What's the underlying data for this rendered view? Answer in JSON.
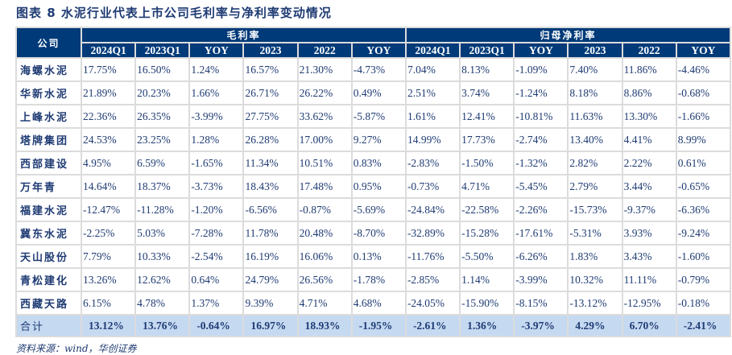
{
  "title": "图表 8  水泥行业代表上市公司毛利率与净利率变动情况",
  "header": {
    "company": "公司",
    "group1": "毛利率",
    "group2": "归母净利率",
    "columns": [
      "2024Q1",
      "2023Q1",
      "YOY",
      "2023",
      "2022",
      "YOY",
      "2024Q1",
      "2023Q1",
      "YOY",
      "2023",
      "2022",
      "YOY"
    ]
  },
  "rows": [
    {
      "company": "海螺水泥",
      "values": [
        "17.75%",
        "16.50%",
        "1.24%",
        "16.57%",
        "21.30%",
        "-4.73%",
        "7.04%",
        "8.13%",
        "-1.09%",
        "7.40%",
        "11.86%",
        "-4.46%"
      ]
    },
    {
      "company": "华新水泥",
      "values": [
        "21.89%",
        "20.23%",
        "1.66%",
        "26.71%",
        "26.22%",
        "0.49%",
        "2.51%",
        "3.74%",
        "-1.24%",
        "8.18%",
        "8.86%",
        "-0.68%"
      ]
    },
    {
      "company": "上峰水泥",
      "values": [
        "22.36%",
        "26.35%",
        "-3.99%",
        "27.75%",
        "33.62%",
        "-5.87%",
        "1.61%",
        "12.41%",
        "-10.81%",
        "11.63%",
        "13.30%",
        "-1.66%"
      ]
    },
    {
      "company": "塔牌集团",
      "values": [
        "24.53%",
        "23.25%",
        "1.28%",
        "26.28%",
        "17.00%",
        "9.27%",
        "14.99%",
        "17.73%",
        "-2.74%",
        "13.40%",
        "4.41%",
        "8.99%"
      ]
    },
    {
      "company": "西部建设",
      "values": [
        "4.95%",
        "6.59%",
        "-1.65%",
        "11.34%",
        "10.51%",
        "0.83%",
        "-2.83%",
        "-1.50%",
        "-1.32%",
        "2.82%",
        "2.22%",
        "0.61%"
      ]
    },
    {
      "company": "万年青",
      "values": [
        "14.64%",
        "18.37%",
        "-3.73%",
        "18.43%",
        "17.48%",
        "0.95%",
        "-0.73%",
        "4.71%",
        "-5.45%",
        "2.79%",
        "3.44%",
        "-0.65%"
      ]
    },
    {
      "company": "福建水泥",
      "values": [
        "-12.47%",
        "-11.28%",
        "-1.20%",
        "-6.56%",
        "-0.87%",
        "-5.69%",
        "-24.84%",
        "-22.58%",
        "-2.26%",
        "-15.73%",
        "-9.37%",
        "-6.36%"
      ]
    },
    {
      "company": "冀东水泥",
      "values": [
        "-2.25%",
        "5.03%",
        "-7.28%",
        "11.78%",
        "20.48%",
        "-8.70%",
        "-32.89%",
        "-15.28%",
        "-17.61%",
        "-5.31%",
        "3.93%",
        "-9.24%"
      ]
    },
    {
      "company": "天山股份",
      "values": [
        "7.79%",
        "10.33%",
        "-2.54%",
        "16.19%",
        "16.06%",
        "0.13%",
        "-11.76%",
        "-5.50%",
        "-6.26%",
        "1.83%",
        "3.43%",
        "-1.60%"
      ]
    },
    {
      "company": "青松建化",
      "values": [
        "13.26%",
        "12.62%",
        "0.64%",
        "24.79%",
        "26.56%",
        "-1.78%",
        "-2.85%",
        "1.14%",
        "-3.99%",
        "10.32%",
        "11.11%",
        "-0.79%"
      ]
    },
    {
      "company": "西藏天路",
      "values": [
        "6.15%",
        "4.78%",
        "1.37%",
        "9.39%",
        "4.71%",
        "4.68%",
        "-24.05%",
        "-15.90%",
        "-8.15%",
        "-13.12%",
        "-12.95%",
        "-0.18%"
      ]
    }
  ],
  "total": {
    "company": "合计",
    "values": [
      "13.12%",
      "13.76%",
      "-0.64%",
      "16.97%",
      "18.93%",
      "-1.95%",
      "-2.61%",
      "1.36%",
      "-3.97%",
      "4.29%",
      "6.70%",
      "-2.41%"
    ]
  },
  "source": "资料来源：wind，华创证券",
  "colors": {
    "header_bg": "#003a78",
    "total_bg": "#c5d9f1",
    "text": "#1f3b73"
  }
}
